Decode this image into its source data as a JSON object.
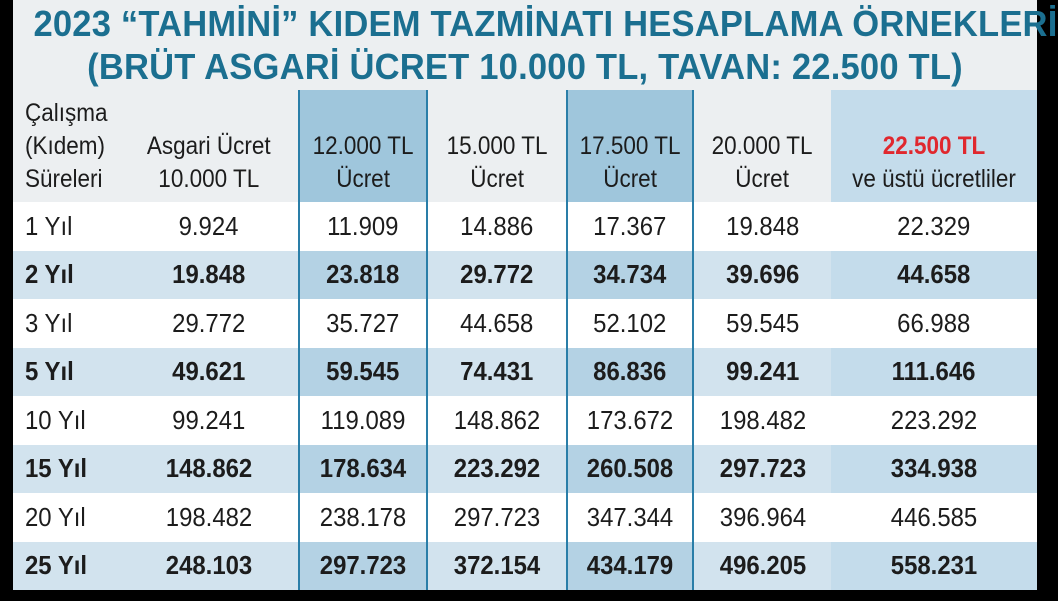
{
  "title": {
    "line1": "2023 “TAHMİNİ” KIDEM TAZMİNATI HESAPLAMA ÖRNEKLERİ",
    "line2": "(BRÜT ASGARİ ÜCRET 10.000 TL, TAVAN: 22.500 TL)"
  },
  "headers": {
    "c0": "Çalışma\n(Kıdem)\nSüreleri",
    "c1": "Asgari Ücret\n10.000 TL",
    "c2": "12.000 TL\nÜcret",
    "c3": "15.000 TL\nÜcret",
    "c4": "17.500 TL\nÜcret",
    "c5": "20.000 TL\nÜcret",
    "c6_top": "22.500 TL",
    "c6_bottom": "ve üstü ücretliler"
  },
  "rows": [
    {
      "label": "1 Yıl",
      "values": [
        "9.924",
        "11.909",
        "14.886",
        "17.367",
        "19.848",
        "22.329"
      ]
    },
    {
      "label": "2 Yıl",
      "values": [
        "19.848",
        "23.818",
        "29.772",
        "34.734",
        "39.696",
        "44.658"
      ]
    },
    {
      "label": "3 Yıl",
      "values": [
        "29.772",
        "35.727",
        "44.658",
        "52.102",
        "59.545",
        "66.988"
      ]
    },
    {
      "label": "5 Yıl",
      "values": [
        "49.621",
        "59.545",
        "74.431",
        "86.836",
        "99.241",
        "111.646"
      ]
    },
    {
      "label": "10 Yıl",
      "values": [
        "99.241",
        "119.089",
        "148.862",
        "173.672",
        "198.482",
        "223.292"
      ]
    },
    {
      "label": "15 Yıl",
      "values": [
        "148.862",
        "178.634",
        "223.292",
        "260.508",
        "297.723",
        "334.938"
      ]
    },
    {
      "label": "20 Yıl",
      "values": [
        "198.482",
        "238.178",
        "297.723",
        "347.344",
        "396.964",
        "446.585"
      ]
    },
    {
      "label": "25 Yıl",
      "values": [
        "248.103",
        "297.723",
        "372.154",
        "434.179",
        "496.205",
        "558.231"
      ]
    }
  ],
  "colors": {
    "title": "#1b6f90",
    "highlight_header": "#9fc6dc",
    "shaded_row": "#d2e3ee",
    "accent_red": "#e0282e"
  }
}
